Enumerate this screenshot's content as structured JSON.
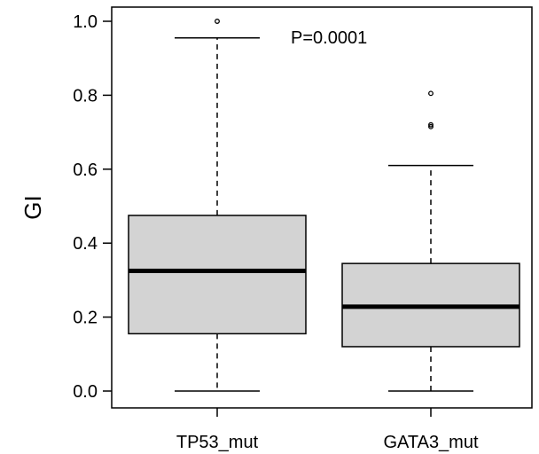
{
  "chart_data": {
    "type": "boxplot",
    "xlabel": "",
    "ylabel": "GI",
    "ylim": [
      0.0,
      1.0
    ],
    "yticks": [
      0.0,
      0.2,
      0.4,
      0.6,
      0.8,
      1.0
    ],
    "ytick_labels": [
      "0.0",
      "0.2",
      "0.4",
      "0.6",
      "0.8",
      "1.0"
    ],
    "grid": false,
    "legend": "none",
    "annotation": "P=0.0001",
    "categories": [
      "TP53_mut",
      "GATA3_mut"
    ],
    "boxes": [
      {
        "category": "TP53_mut",
        "whisker_low": 0.0,
        "q1": 0.155,
        "median": 0.325,
        "q3": 0.475,
        "whisker_high": 0.955,
        "outliers": [
          1.0
        ]
      },
      {
        "category": "GATA3_mut",
        "whisker_low": 0.0,
        "q1": 0.12,
        "median": 0.228,
        "q3": 0.345,
        "whisker_high": 0.61,
        "outliers": [
          0.805,
          0.72,
          0.715
        ]
      }
    ],
    "box_fill": "#d3d3d3",
    "line_color": "#000000"
  }
}
